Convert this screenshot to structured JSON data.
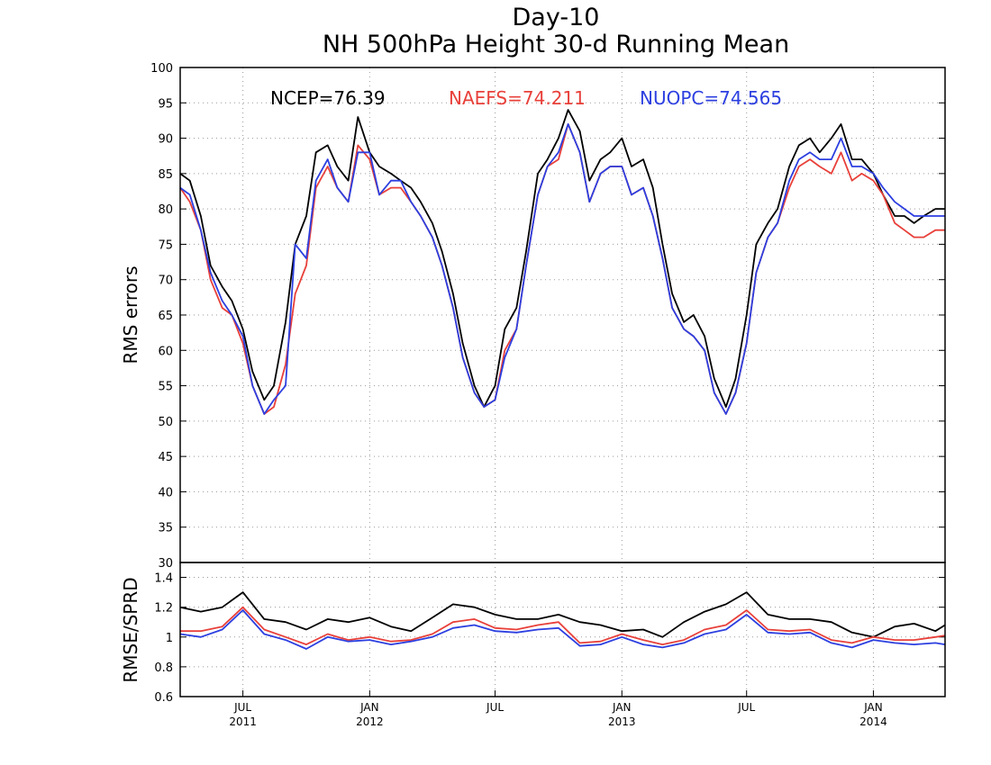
{
  "chart_data": [
    {
      "type": "line",
      "title": "Day-10",
      "subtitle": "NH 500hPa Height 30-d Running Mean",
      "ylabel": "RMS errors",
      "xlabel": "",
      "ylim": [
        30,
        100
      ],
      "yticks": [
        30,
        35,
        40,
        45,
        50,
        55,
        60,
        65,
        70,
        75,
        80,
        85,
        90,
        95,
        100
      ],
      "xlim": [
        "2011-04-01",
        "2014-04-15"
      ],
      "xticks": [
        {
          "date": "2011-07-01",
          "label": "JUL",
          "sublabel": "2011"
        },
        {
          "date": "2012-01-01",
          "label": "JAN",
          "sublabel": "2012"
        },
        {
          "date": "2012-07-01",
          "label": "JUL",
          "sublabel": ""
        },
        {
          "date": "2013-01-01",
          "label": "JAN",
          "sublabel": "2013"
        },
        {
          "date": "2013-07-01",
          "label": "JUL",
          "sublabel": ""
        },
        {
          "date": "2014-01-01",
          "label": "JAN",
          "sublabel": "2014"
        }
      ],
      "grid": true,
      "annotations": [
        {
          "text": "NCEP=76.39",
          "color": "#000000"
        },
        {
          "text": "NAEFS=74.211",
          "color": "#e8403a"
        },
        {
          "text": "NUOPC=74.565",
          "color": "#2c3fe0"
        }
      ],
      "x": [
        "2011-04-01",
        "2011-04-15",
        "2011-05-01",
        "2011-05-15",
        "2011-06-01",
        "2011-06-15",
        "2011-07-01",
        "2011-07-15",
        "2011-08-01",
        "2011-08-15",
        "2011-09-01",
        "2011-09-15",
        "2011-10-01",
        "2011-10-15",
        "2011-11-01",
        "2011-11-15",
        "2011-12-01",
        "2011-12-15",
        "2012-01-01",
        "2012-01-15",
        "2012-02-01",
        "2012-02-15",
        "2012-03-01",
        "2012-03-15",
        "2012-04-01",
        "2012-04-15",
        "2012-05-01",
        "2012-05-15",
        "2012-06-01",
        "2012-06-15",
        "2012-07-01",
        "2012-07-15",
        "2012-08-01",
        "2012-08-15",
        "2012-09-01",
        "2012-09-15",
        "2012-10-01",
        "2012-10-15",
        "2012-11-01",
        "2012-11-15",
        "2012-12-01",
        "2012-12-15",
        "2013-01-01",
        "2013-01-15",
        "2013-02-01",
        "2013-02-15",
        "2013-03-01",
        "2013-03-15",
        "2013-04-01",
        "2013-04-15",
        "2013-05-01",
        "2013-05-15",
        "2013-06-01",
        "2013-06-15",
        "2013-07-01",
        "2013-07-15",
        "2013-08-01",
        "2013-08-15",
        "2013-09-01",
        "2013-09-15",
        "2013-10-01",
        "2013-10-15",
        "2013-11-01",
        "2013-11-15",
        "2013-12-01",
        "2013-12-15",
        "2014-01-01",
        "2014-01-15",
        "2014-02-01",
        "2014-02-15",
        "2014-03-01",
        "2014-03-15",
        "2014-04-01",
        "2014-04-15"
      ],
      "series": [
        {
          "name": "NCEP",
          "color": "#000000",
          "values": [
            85,
            84,
            79,
            72,
            69,
            67,
            63,
            57,
            53,
            55,
            64,
            75,
            79,
            88,
            89,
            86,
            84,
            93,
            88,
            86,
            85,
            84,
            83,
            81,
            78,
            74,
            68,
            61,
            55,
            52,
            55,
            63,
            66,
            74,
            85,
            87,
            90,
            94,
            91,
            84,
            87,
            88,
            90,
            86,
            87,
            83,
            75,
            68,
            64,
            65,
            62,
            56,
            52,
            56,
            65,
            75,
            78,
            80,
            86,
            89,
            90,
            88,
            90,
            92,
            87,
            87,
            85,
            82,
            79,
            79,
            78,
            79,
            80,
            80
          ]
        },
        {
          "name": "NAEFS",
          "color": "#e8403a",
          "values": [
            83,
            81,
            77,
            70,
            66,
            65,
            61,
            55,
            51,
            52,
            58,
            68,
            72,
            83,
            86,
            83,
            81,
            89,
            87,
            82,
            83,
            83,
            81,
            79,
            76,
            72,
            66,
            59,
            54,
            52,
            53,
            60,
            63,
            72,
            82,
            86,
            87,
            92,
            88,
            81,
            85,
            86,
            86,
            82,
            83,
            79,
            73,
            66,
            63,
            62,
            60,
            54,
            51,
            54,
            61,
            71,
            76,
            78,
            83,
            86,
            87,
            86,
            85,
            88,
            84,
            85,
            84,
            82,
            78,
            77,
            76,
            76,
            77,
            77
          ]
        },
        {
          "name": "NUOPC",
          "color": "#2c3fe0",
          "values": [
            83,
            82,
            77,
            71,
            67,
            65,
            62,
            55,
            51,
            53,
            55,
            75,
            73,
            84,
            87,
            83,
            81,
            88,
            88,
            82,
            84,
            84,
            81,
            79,
            76,
            72,
            66,
            59,
            54,
            52,
            53,
            59,
            63,
            72,
            82,
            86,
            88,
            92,
            88,
            81,
            85,
            86,
            86,
            82,
            83,
            79,
            73,
            66,
            63,
            62,
            60,
            54,
            51,
            54,
            61,
            71,
            76,
            78,
            84,
            87,
            88,
            87,
            87,
            90,
            86,
            86,
            85,
            83,
            81,
            80,
            79,
            79,
            79,
            79
          ]
        }
      ]
    },
    {
      "type": "line",
      "ylabel": "RMSE/SPRD",
      "xlabel": "",
      "ylim": [
        0.6,
        1.5
      ],
      "yticks": [
        0.6,
        0.8,
        1.0,
        1.2,
        1.4
      ],
      "ytick_labels": [
        "0.6",
        "0.8",
        "1",
        "1.2",
        "1.4"
      ],
      "xlim": [
        "2011-04-01",
        "2014-04-15"
      ],
      "grid": true,
      "x": [
        "2011-04-01",
        "2011-05-01",
        "2011-06-01",
        "2011-07-01",
        "2011-08-01",
        "2011-09-01",
        "2011-10-01",
        "2011-11-01",
        "2011-12-01",
        "2012-01-01",
        "2012-02-01",
        "2012-03-01",
        "2012-04-01",
        "2012-05-01",
        "2012-06-01",
        "2012-07-01",
        "2012-08-01",
        "2012-09-01",
        "2012-10-01",
        "2012-11-01",
        "2012-12-01",
        "2013-01-01",
        "2013-02-01",
        "2013-03-01",
        "2013-04-01",
        "2013-05-01",
        "2013-06-01",
        "2013-07-01",
        "2013-08-01",
        "2013-09-01",
        "2013-10-01",
        "2013-11-01",
        "2013-12-01",
        "2014-01-01",
        "2014-02-01",
        "2014-03-01",
        "2014-04-01",
        "2014-04-15"
      ],
      "series": [
        {
          "name": "NCEP",
          "color": "#000000",
          "values": [
            1.2,
            1.17,
            1.2,
            1.3,
            1.12,
            1.1,
            1.05,
            1.12,
            1.1,
            1.13,
            1.07,
            1.04,
            1.13,
            1.22,
            1.2,
            1.15,
            1.12,
            1.12,
            1.15,
            1.1,
            1.08,
            1.04,
            1.05,
            1.0,
            1.1,
            1.17,
            1.22,
            1.3,
            1.15,
            1.12,
            1.12,
            1.1,
            1.03,
            1.0,
            1.07,
            1.09,
            1.04,
            1.08
          ]
        },
        {
          "name": "NAEFS",
          "color": "#e8403a",
          "values": [
            1.04,
            1.04,
            1.07,
            1.2,
            1.05,
            1.0,
            0.95,
            1.02,
            0.98,
            1.0,
            0.97,
            0.98,
            1.02,
            1.1,
            1.12,
            1.06,
            1.05,
            1.08,
            1.1,
            0.96,
            0.97,
            1.02,
            0.98,
            0.95,
            0.98,
            1.05,
            1.08,
            1.18,
            1.05,
            1.04,
            1.05,
            0.98,
            0.96,
            1.0,
            0.98,
            0.98,
            1.0,
            1.01
          ]
        },
        {
          "name": "NUOPC",
          "color": "#2c3fe0",
          "values": [
            1.02,
            1.0,
            1.05,
            1.18,
            1.02,
            0.98,
            0.92,
            1.0,
            0.97,
            0.98,
            0.95,
            0.97,
            1.0,
            1.06,
            1.08,
            1.04,
            1.03,
            1.05,
            1.06,
            0.94,
            0.95,
            1.0,
            0.95,
            0.93,
            0.96,
            1.02,
            1.05,
            1.15,
            1.03,
            1.02,
            1.03,
            0.96,
            0.93,
            0.98,
            0.96,
            0.95,
            0.96,
            0.95
          ]
        }
      ]
    }
  ]
}
